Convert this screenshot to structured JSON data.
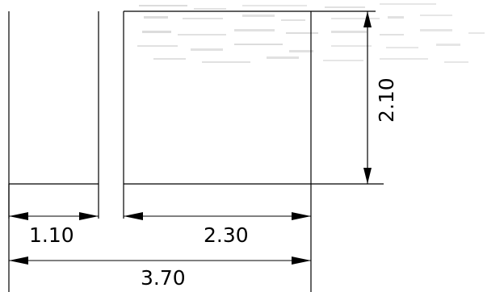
{
  "dimensions": {
    "left_width": "1.10",
    "right_width": "2.30",
    "total_width": "3.70",
    "height": "2.10"
  },
  "colors": {
    "line": "#000000",
    "background": "#ffffff",
    "scan_artifact": "#9a9a9a"
  }
}
